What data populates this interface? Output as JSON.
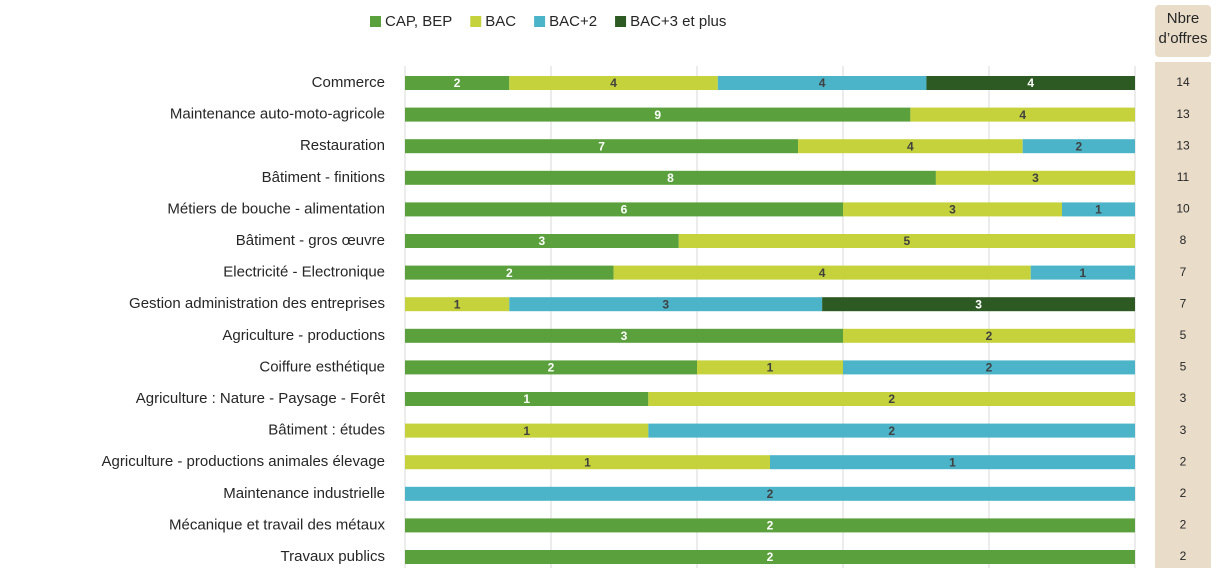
{
  "chart_data": {
    "type": "stacked_bar_100",
    "categories": [
      "Commerce",
      "Maintenance auto-moto-agricole",
      "Restauration",
      "Bâtiment - finitions",
      "Métiers de bouche - alimentation",
      "Bâtiment - gros œuvre",
      "Electricité - Electronique",
      "Gestion administration des entreprises",
      "Agriculture - productions",
      "Coiffure esthétique",
      "Agriculture : Nature - Paysage - Forêt",
      "Bâtiment : études",
      "Agriculture - productions animales élevage",
      "Maintenance industrielle",
      "Mécanique et travail des métaux",
      "Travaux publics"
    ],
    "series": [
      {
        "name": "CAP, BEP",
        "color": "#5aa03c",
        "values": [
          2,
          9,
          7,
          8,
          6,
          3,
          2,
          null,
          3,
          2,
          1,
          null,
          null,
          null,
          2,
          2
        ]
      },
      {
        "name": "BAC",
        "color": "#c5d23c",
        "values": [
          4,
          4,
          4,
          3,
          3,
          5,
          4,
          1,
          2,
          1,
          2,
          1,
          1,
          null,
          null,
          null
        ]
      },
      {
        "name": "BAC+2",
        "color": "#4bb4c8",
        "values": [
          4,
          null,
          2,
          null,
          1,
          null,
          1,
          3,
          null,
          2,
          null,
          2,
          1,
          2,
          null,
          null
        ]
      },
      {
        "name": "BAC+3 et plus",
        "color": "#2d5a23",
        "values": [
          4,
          null,
          null,
          null,
          null,
          null,
          null,
          3,
          null,
          null,
          null,
          null,
          null,
          null,
          null,
          null
        ]
      }
    ],
    "totals_header": "Nbre d’offres",
    "totals": [
      14,
      13,
      13,
      11,
      10,
      8,
      7,
      7,
      5,
      5,
      3,
      3,
      2,
      2,
      2,
      2
    ],
    "grid": true,
    "legend": "top"
  }
}
